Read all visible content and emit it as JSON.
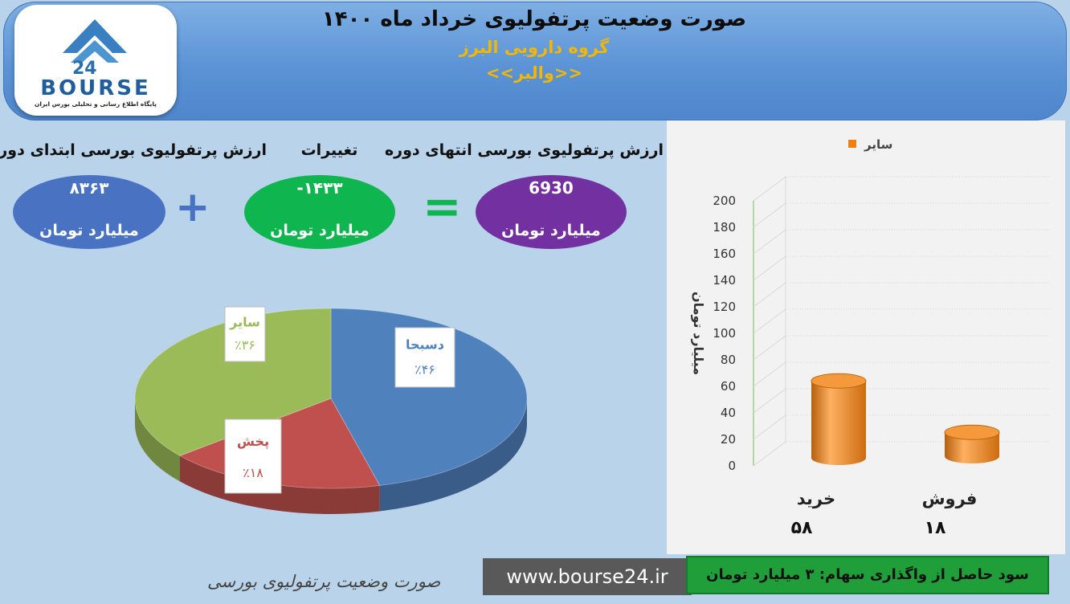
{
  "header": {
    "title": "صورت وضعیت پرتفولیوی خرداد ماه ۱۴۰۰",
    "subtitle": "گروه دارویی البرز",
    "symbol": "<<والبر>>"
  },
  "logo": {
    "brand": "BOURSE",
    "tagline": "پایگاه اطلاع رسانی و تحلیلی بورس ایران",
    "icon": "bourse24-logo"
  },
  "summary": {
    "start": {
      "label": "ارزش پرتفولیوی بورسی ابتدای دوره",
      "value": "۸۳۶۳",
      "unit": "میلیارد تومان",
      "color": "#4a72c2"
    },
    "change": {
      "label": "تغییرات",
      "value": "-۱۴۳۳",
      "unit": "میلیارد تومان",
      "color": "#0fb64f"
    },
    "end": {
      "label": "ارزش پرتفولیوی بورسی انتهای دوره",
      "value": "6930",
      "unit": "میلیارد تومان",
      "color": "#7330a0"
    },
    "plus_symbol": "+",
    "equals_symbol": "="
  },
  "chart_data": [
    {
      "type": "pie",
      "labels": [
        "دسبحا",
        "پخش",
        "سایر"
      ],
      "values": [
        46,
        18,
        36
      ],
      "value_labels": [
        "٪۴۶",
        "٪۱۸",
        "٪۳۶"
      ],
      "colors": [
        "#4f81bd",
        "#c0504d",
        "#9bbb59"
      ],
      "label_colors": [
        "#4f81bd",
        "#c0504d",
        "#9bbb59"
      ]
    },
    {
      "type": "bar",
      "categories": [
        "خرید",
        "فروش"
      ],
      "series": [
        {
          "name": "سایر",
          "values": [
            58,
            18
          ],
          "color": "#f07f13"
        }
      ],
      "value_labels": [
        "۵۸",
        "۱۸"
      ],
      "ylabel": "میلیارد تومان",
      "ylim": [
        0,
        200
      ],
      "yticks": [
        0,
        20,
        40,
        60,
        80,
        100,
        120,
        140,
        160,
        180,
        200
      ],
      "legend_position": "top"
    }
  ],
  "footer": {
    "caption": "صورت وضعیت پرتفولیوی بورسی",
    "url": "www.bourse24.ir",
    "profit": "سود حاصل از واگذاری سهام: ۳ میلیارد تومان"
  }
}
